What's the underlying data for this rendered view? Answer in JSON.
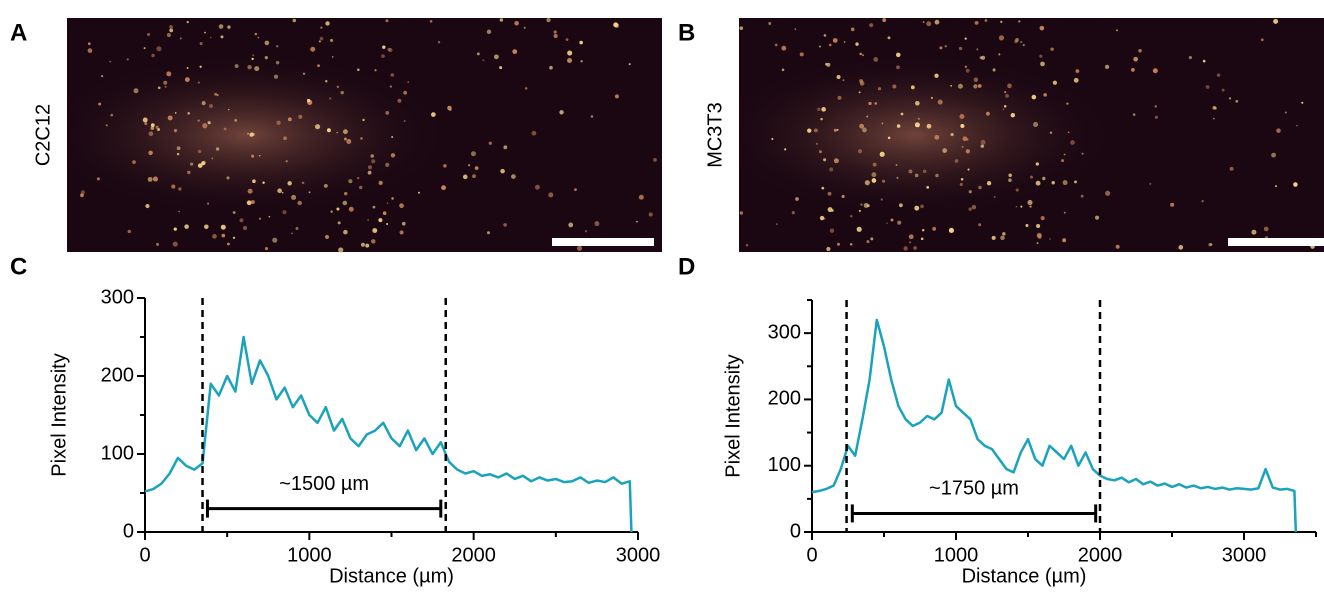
{
  "panels": {
    "labels": [
      "A",
      "B",
      "C",
      "D"
    ],
    "rows": [
      "C2C12",
      "MC3T3"
    ]
  },
  "chart_data": [
    {
      "type": "line",
      "xlabel": "Distance (µm)",
      "ylabel": "Pixel Intensity",
      "color": "#1aa3bb",
      "x": [
        0,
        50,
        100,
        150,
        200,
        250,
        300,
        350,
        400,
        450,
        500,
        550,
        600,
        650,
        700,
        750,
        800,
        850,
        900,
        950,
        1000,
        1050,
        1100,
        1150,
        1200,
        1250,
        1300,
        1350,
        1400,
        1450,
        1500,
        1550,
        1600,
        1650,
        1700,
        1750,
        1800,
        1850,
        1900,
        1950,
        2000,
        2050,
        2100,
        2150,
        2200,
        2250,
        2300,
        2350,
        2400,
        2450,
        2500,
        2550,
        2600,
        2650,
        2700,
        2750,
        2800,
        2850,
        2900,
        2950,
        2960
      ],
      "values": [
        52,
        55,
        62,
        75,
        95,
        85,
        80,
        88,
        190,
        175,
        200,
        180,
        250,
        190,
        220,
        200,
        170,
        185,
        160,
        175,
        150,
        140,
        160,
        130,
        145,
        120,
        110,
        125,
        130,
        140,
        120,
        110,
        130,
        105,
        120,
        100,
        115,
        90,
        80,
        75,
        78,
        72,
        74,
        70,
        75,
        68,
        72,
        65,
        70,
        66,
        68,
        64,
        65,
        70,
        63,
        66,
        64,
        70,
        62,
        65,
        0
      ],
      "xlim": [
        0,
        3000
      ],
      "xticks": [
        0,
        1000,
        2000,
        3000
      ],
      "xminorticks": [
        500,
        1500,
        2500
      ],
      "ylim": [
        0,
        300
      ],
      "yticks": [
        0,
        100,
        200,
        300
      ],
      "yminorticks": [
        50,
        150,
        250
      ],
      "vlines": [
        350,
        1830
      ],
      "bracket": {
        "x": [
          380,
          1800
        ],
        "y": 30,
        "label": "~1500 µm"
      }
    },
    {
      "type": "line",
      "xlabel": "Distance (µm)",
      "ylabel": "Pixel Intensity",
      "color": "#1aa3bb",
      "x": [
        0,
        50,
        100,
        150,
        200,
        250,
        300,
        350,
        400,
        450,
        500,
        550,
        600,
        650,
        700,
        750,
        800,
        850,
        900,
        950,
        1000,
        1050,
        1100,
        1150,
        1200,
        1250,
        1300,
        1350,
        1400,
        1450,
        1500,
        1550,
        1600,
        1650,
        1700,
        1750,
        1800,
        1850,
        1900,
        1950,
        2000,
        2050,
        2100,
        2150,
        2200,
        2250,
        2300,
        2350,
        2400,
        2450,
        2500,
        2550,
        2600,
        2650,
        2700,
        2750,
        2800,
        2850,
        2900,
        2950,
        3000,
        3050,
        3100,
        3150,
        3200,
        3250,
        3300,
        3350,
        3360
      ],
      "values": [
        60,
        62,
        65,
        70,
        95,
        130,
        115,
        170,
        230,
        320,
        280,
        230,
        190,
        170,
        160,
        165,
        175,
        170,
        180,
        230,
        190,
        180,
        170,
        140,
        130,
        125,
        110,
        95,
        90,
        120,
        140,
        110,
        100,
        130,
        120,
        110,
        130,
        100,
        120,
        95,
        85,
        80,
        78,
        82,
        75,
        80,
        72,
        76,
        70,
        73,
        68,
        72,
        67,
        70,
        66,
        68,
        65,
        67,
        64,
        66,
        65,
        64,
        66,
        95,
        67,
        64,
        65,
        62,
        0
      ],
      "xlim": [
        0,
        3500
      ],
      "xticks": [
        0,
        1000,
        2000,
        3000
      ],
      "xminorticks": [
        500,
        1500,
        2500,
        3500
      ],
      "ylim": [
        0,
        350
      ],
      "yticks": [
        0,
        100,
        200,
        300
      ],
      "yminorticks": [
        50,
        150,
        250,
        350
      ],
      "vlines": [
        240,
        2000
      ],
      "bracket": {
        "x": [
          280,
          1970
        ],
        "y": 28,
        "label": "~1750 µm"
      }
    }
  ]
}
